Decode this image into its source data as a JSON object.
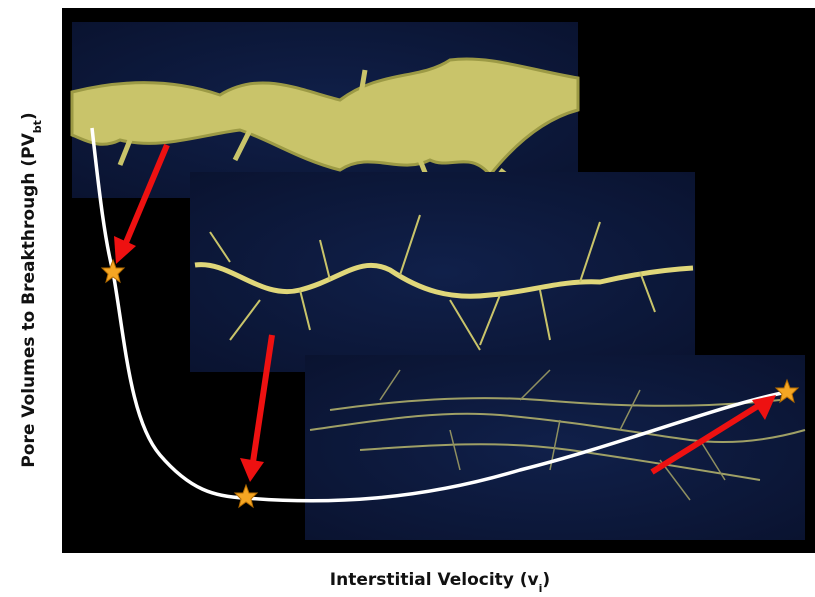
{
  "y_axis_label": {
    "main": "Pore Volumes to Breakthrough (PV",
    "sub": "bt",
    "close": ")"
  },
  "x_axis_label": {
    "main": "Interstitial Velocity (v",
    "sub": "i",
    "close": ")"
  }
}
